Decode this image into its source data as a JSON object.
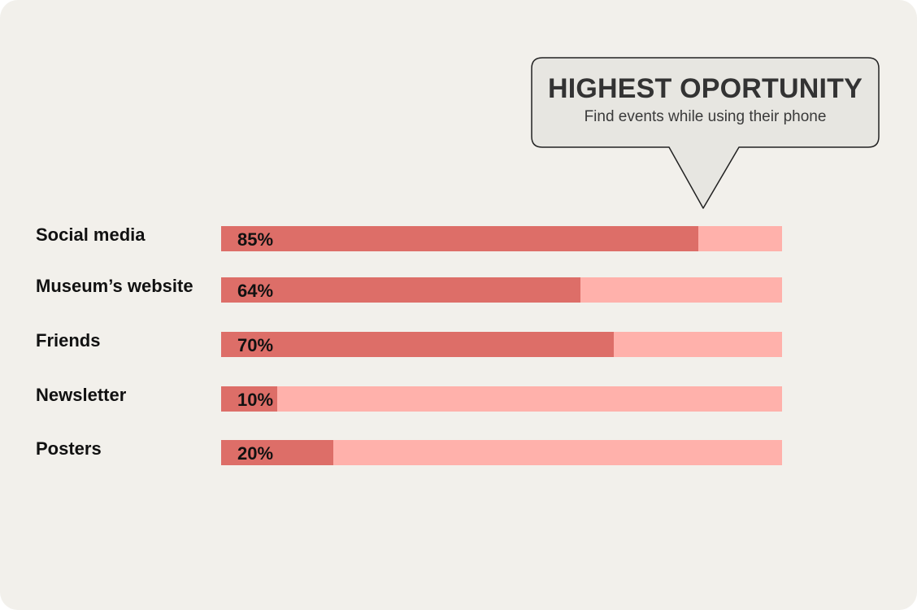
{
  "callout": {
    "title": "HIGHEST OPORTUNITY",
    "subtitle": "Find events while using their phone"
  },
  "colors": {
    "background": "#f2f0eb",
    "bar_fill": "#dd6e68",
    "bar_track": "#ffb1ab",
    "callout_fill": "#e7e6e1",
    "callout_stroke": "#222222"
  },
  "chart_data": {
    "type": "bar",
    "orientation": "horizontal",
    "categories": [
      "Social media",
      "Museum’s website",
      "Friends",
      "Newsletter",
      "Posters"
    ],
    "values": [
      85,
      64,
      70,
      10,
      20
    ],
    "value_labels": [
      "85%",
      "64%",
      "70%",
      "10%",
      "20%"
    ],
    "unit": "%",
    "xlim": [
      0,
      100
    ],
    "grid": false,
    "legend": "none",
    "annotation": {
      "target_category": "Social media",
      "text": "HIGHEST OPORTUNITY",
      "subtext": "Find events while using their phone"
    }
  }
}
